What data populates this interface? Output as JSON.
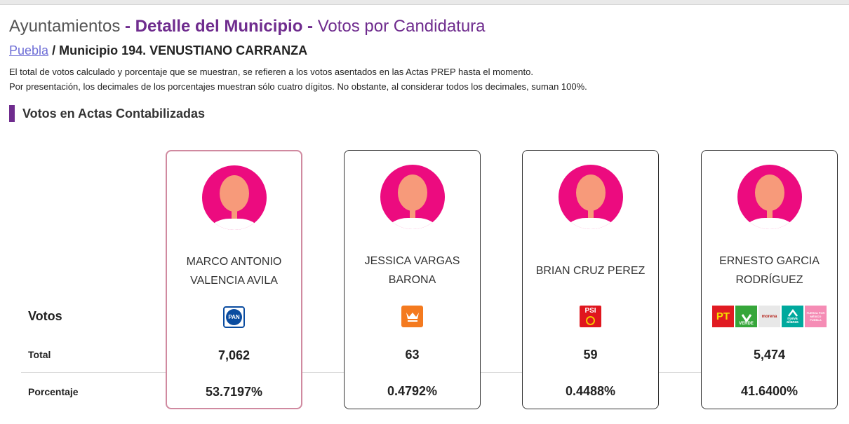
{
  "header": {
    "title_prefix": "Ayuntamientos",
    "title_sep1": " - ",
    "title_main": "Detalle del Municipio",
    "title_sep2": " - ",
    "title_sub": "Votos por Candidatura"
  },
  "breadcrumb": {
    "state_link": "Puebla",
    "separator": " / ",
    "current": "Municipio 194. VENUSTIANO CARRANZA"
  },
  "notes": [
    "El total de votos calculado y porcentaje que se muestran, se refieren a los votos asentados en las Actas PREP hasta el momento.",
    "Por presentación, los decimales de los porcentajes muestran sólo cuatro dígitos. No obstante, al considerar todos los decimales, suman 100%."
  ],
  "section_title": "Votos en Actas Contabilizadas",
  "row_labels": {
    "votes": "Votos",
    "total": "Total",
    "percent": "Porcentaje"
  },
  "colors": {
    "accent": "#6f2c8e",
    "avatar_bg": "#ec0b7f",
    "winner_border": "#d08aa0"
  },
  "candidates": [
    {
      "name": "MARCO ANTONIO VALENCIA AVILA",
      "parties": [
        {
          "label": "PAN",
          "icon": "pan-logo-icon"
        }
      ],
      "total": "7,062",
      "percent": "53.7197%",
      "leading": true
    },
    {
      "name": "JESSICA VARGAS BARONA",
      "parties": [
        {
          "label": "",
          "icon": "movimiento-ciudadano-logo-icon"
        }
      ],
      "total": "63",
      "percent": "0.4792%",
      "leading": false
    },
    {
      "name": "BRIAN CRUZ PEREZ",
      "parties": [
        {
          "label": "PSI",
          "icon": "psi-logo-icon"
        }
      ],
      "total": "59",
      "percent": "0.4488%",
      "leading": false
    },
    {
      "name": "ERNESTO GARCIA RODRÍGUEZ",
      "parties": [
        {
          "label": "PT",
          "icon": "pt-logo-icon"
        },
        {
          "label": "VERDE",
          "icon": "verde-logo-icon"
        },
        {
          "label": "morena",
          "icon": "morena-logo-icon"
        },
        {
          "label": "nueva alianza",
          "icon": "nueva-alianza-logo-icon"
        },
        {
          "label": "FUERZA POR MÉXICO PUEBLA",
          "icon": "fuerza-por-mexico-logo-icon"
        }
      ],
      "total": "5,474",
      "percent": "41.6400%",
      "leading": false
    }
  ]
}
